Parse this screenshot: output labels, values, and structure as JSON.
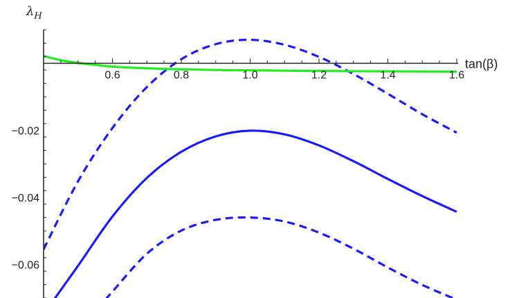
{
  "chart_data": {
    "type": "line",
    "xlabel": "tan(β)",
    "ylabel": "λ",
    "ylabel_sub": "H",
    "xlim": [
      0.4,
      1.6
    ],
    "ylim": [
      -0.07,
      0.01
    ],
    "x_ticks": [
      {
        "value": 0.6,
        "label": "0.6"
      },
      {
        "value": 0.8,
        "label": "0.8"
      },
      {
        "value": 1.0,
        "label": "1.0"
      },
      {
        "value": 1.2,
        "label": "1.2"
      },
      {
        "value": 1.4,
        "label": "1.4"
      },
      {
        "value": 1.6,
        "label": "1.6"
      }
    ],
    "y_ticks": [
      {
        "value": -0.02,
        "label": "−0.02"
      },
      {
        "value": -0.04,
        "label": "−0.04"
      },
      {
        "value": -0.06,
        "label": "−0.06"
      }
    ],
    "grid": false,
    "legend": "none",
    "colors": {
      "blue": "#1a1aff",
      "green": "#22ee22",
      "axis": "#222222"
    },
    "series": [
      {
        "style": "dashed",
        "color": "#1a1aff",
        "x": [
          0.4,
          0.5,
          0.6,
          0.7,
          0.8,
          0.9,
          1.0,
          1.1,
          1.2,
          1.3,
          1.4,
          1.5,
          1.6
        ],
        "y": [
          -0.0555,
          -0.0352,
          -0.0193,
          -0.0071,
          0.0012,
          0.0057,
          0.007,
          0.0055,
          0.0019,
          -0.0032,
          -0.0091,
          -0.0152,
          -0.0207
        ]
      },
      {
        "style": "solid",
        "color": "#1a1aff",
        "x": [
          0.43,
          0.5,
          0.6,
          0.7,
          0.8,
          0.9,
          1.0,
          1.1,
          1.2,
          1.3,
          1.4,
          1.5,
          1.6
        ],
        "y": [
          -0.0705,
          -0.0604,
          -0.0457,
          -0.0342,
          -0.0264,
          -0.0218,
          -0.0201,
          -0.0212,
          -0.0245,
          -0.0292,
          -0.0345,
          -0.0396,
          -0.0443
        ]
      },
      {
        "style": "dashed",
        "color": "#1a1aff",
        "x": [
          0.58,
          0.6,
          0.7,
          0.8,
          0.9,
          1.0,
          1.1,
          1.2,
          1.3,
          1.4,
          1.5,
          1.6
        ],
        "y": [
          -0.0705,
          -0.0681,
          -0.0568,
          -0.0499,
          -0.0467,
          -0.046,
          -0.0472,
          -0.0505,
          -0.0553,
          -0.0609,
          -0.0661,
          -0.0705
        ]
      },
      {
        "style": "solid",
        "color": "#22ee22",
        "x": [
          0.4,
          0.45,
          0.5,
          0.55,
          0.6,
          0.7,
          0.8,
          0.9,
          1.0,
          1.2,
          1.4,
          1.6
        ],
        "y": [
          0.0022,
          0.0009,
          0.0001,
          -0.0005,
          -0.001,
          -0.0015,
          -0.0018,
          -0.002,
          -0.0021,
          -0.0023,
          -0.0024,
          -0.0025
        ]
      }
    ]
  }
}
